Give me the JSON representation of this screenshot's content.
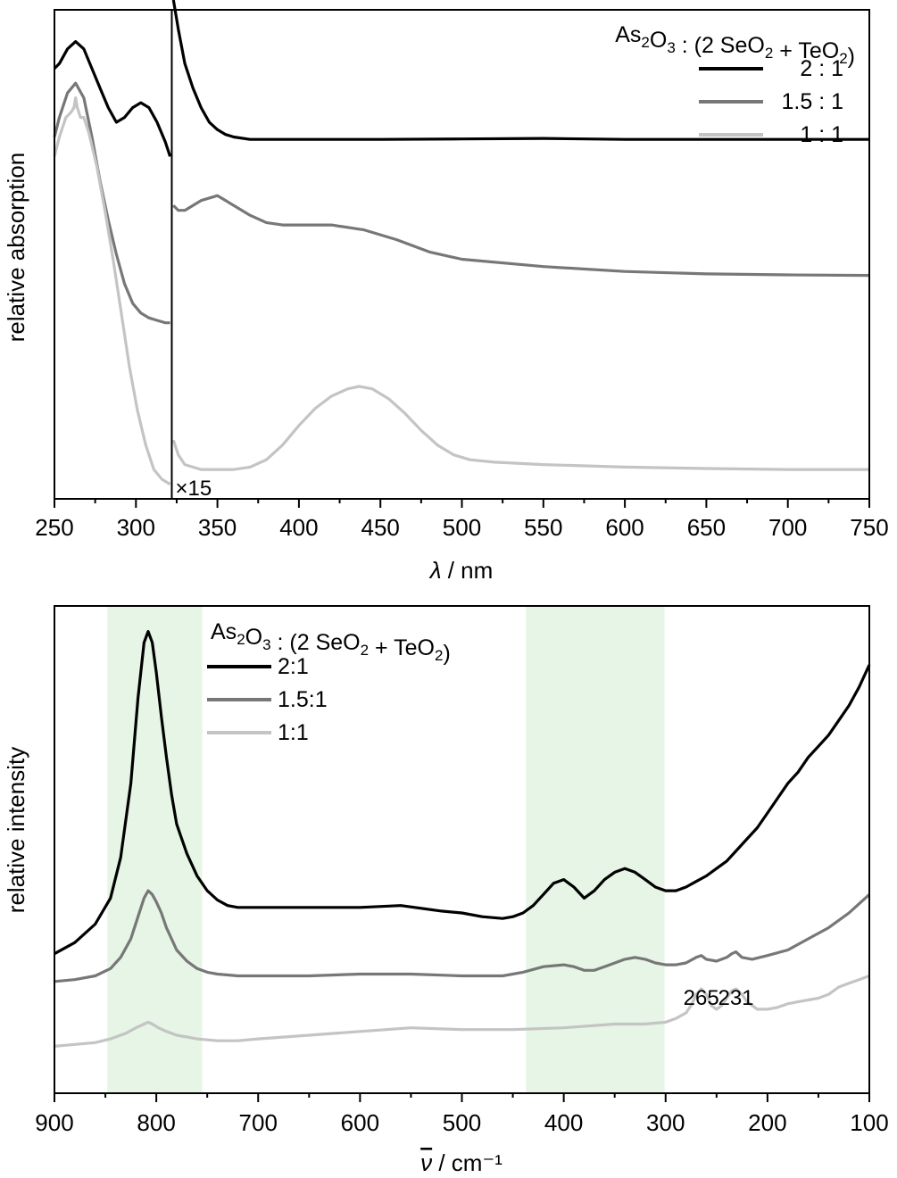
{
  "chart_data": [
    {
      "type": "line",
      "panel": "top",
      "xlabel_symbol": "λ",
      "xlabel_unit": " / nm",
      "ylabel": "relative absorption",
      "xlim": [
        250,
        750
      ],
      "xticks": [
        "250",
        "300",
        "350",
        "400",
        "450",
        "500",
        "550",
        "600",
        "650",
        "700",
        "750"
      ],
      "y_axis_tick_labels": false,
      "split_at": 322,
      "split_factor_label": "×15",
      "legend": {
        "title_parts": [
          [
            "As",
            ""
          ],
          [
            "2",
            "sub"
          ],
          [
            "O",
            ""
          ],
          [
            "3",
            "sub"
          ],
          [
            " : (2 SeO",
            ""
          ],
          [
            "2",
            "sub"
          ],
          [
            " + TeO",
            ""
          ],
          [
            "2",
            "sub"
          ],
          [
            ")",
            ""
          ]
        ],
        "position": "top-right"
      },
      "series": [
        {
          "name": "2 : 1",
          "color": "#000000",
          "x": [
            250,
            253,
            258,
            263,
            268,
            273,
            278,
            283,
            288,
            293,
            298,
            303,
            308,
            313,
            318,
            321,
            323,
            326,
            330,
            335,
            340,
            345,
            350,
            355,
            360,
            370,
            380,
            400,
            450,
            500,
            550,
            600,
            650,
            700,
            750
          ],
          "y": [
            0.88,
            0.89,
            0.92,
            0.935,
            0.92,
            0.88,
            0.84,
            0.8,
            0.77,
            0.78,
            0.8,
            0.81,
            0.8,
            0.77,
            0.73,
            0.7,
            1.02,
            0.96,
            0.89,
            0.84,
            0.8,
            0.77,
            0.755,
            0.745,
            0.74,
            0.735,
            0.735,
            0.735,
            0.735,
            0.736,
            0.737,
            0.735,
            0.735,
            0.735,
            0.735
          ]
        },
        {
          "name": "1.5 : 1",
          "color": "#777777",
          "x": [
            250,
            253,
            258,
            263,
            268,
            273,
            278,
            283,
            288,
            293,
            298,
            303,
            308,
            313,
            318,
            321,
            323,
            326,
            330,
            340,
            350,
            360,
            370,
            380,
            390,
            400,
            420,
            440,
            460,
            480,
            500,
            550,
            600,
            650,
            700,
            750
          ],
          "y": [
            0.74,
            0.78,
            0.83,
            0.85,
            0.82,
            0.74,
            0.65,
            0.57,
            0.5,
            0.44,
            0.4,
            0.38,
            0.37,
            0.365,
            0.36,
            0.36,
            0.6,
            0.59,
            0.59,
            0.61,
            0.62,
            0.6,
            0.58,
            0.565,
            0.56,
            0.56,
            0.56,
            0.55,
            0.53,
            0.505,
            0.49,
            0.475,
            0.465,
            0.46,
            0.458,
            0.457
          ]
        },
        {
          "name": "1 : 1",
          "color": "#c4c4c4",
          "x": [
            250,
            253,
            257,
            260,
            262,
            263,
            264,
            266,
            268,
            271,
            276,
            281,
            286,
            291,
            296,
            301,
            306,
            311,
            316,
            321,
            323,
            326,
            330,
            340,
            350,
            360,
            370,
            380,
            390,
            400,
            410,
            420,
            430,
            437,
            445,
            455,
            465,
            475,
            485,
            495,
            505,
            520,
            550,
            600,
            650,
            700,
            750
          ],
          "y": [
            0.7,
            0.74,
            0.78,
            0.79,
            0.8,
            0.82,
            0.8,
            0.78,
            0.78,
            0.75,
            0.68,
            0.59,
            0.49,
            0.38,
            0.27,
            0.18,
            0.11,
            0.06,
            0.04,
            0.03,
            0.12,
            0.09,
            0.07,
            0.06,
            0.06,
            0.06,
            0.065,
            0.08,
            0.11,
            0.15,
            0.185,
            0.21,
            0.225,
            0.23,
            0.225,
            0.205,
            0.175,
            0.14,
            0.11,
            0.09,
            0.08,
            0.075,
            0.07,
            0.065,
            0.062,
            0.06,
            0.06
          ]
        }
      ]
    },
    {
      "type": "line",
      "panel": "bottom",
      "xlabel_symbol": "ν",
      "xlabel_unit": " / cm⁻¹",
      "ylabel": "relative intensity",
      "xlim": [
        900,
        100
      ],
      "xticks": [
        "900",
        "800",
        "700",
        "600",
        "500",
        "400",
        "300",
        "200",
        "100"
      ],
      "y_axis_tick_labels": false,
      "highlight_bands": [
        [
          848,
          755
        ],
        [
          437,
          301
        ]
      ],
      "highlight_color": "#e6f5e6",
      "legend": {
        "title_parts": [
          [
            "As",
            ""
          ],
          [
            "2",
            "sub"
          ],
          [
            "O",
            ""
          ],
          [
            "3",
            "sub"
          ],
          [
            " : (2 SeO",
            ""
          ],
          [
            "2",
            "sub"
          ],
          [
            " + TeO",
            ""
          ],
          [
            "2",
            "sub"
          ],
          [
            ")",
            ""
          ]
        ],
        "position": "top-left"
      },
      "annotations": [
        {
          "text": "265",
          "x": 265
        },
        {
          "text": "231",
          "x": 231
        }
      ],
      "series": [
        {
          "name": "2:1",
          "color": "#000000",
          "x": [
            900,
            880,
            860,
            845,
            835,
            825,
            818,
            812,
            808,
            804,
            800,
            795,
            790,
            785,
            780,
            770,
            760,
            750,
            740,
            730,
            720,
            700,
            650,
            600,
            560,
            520,
            500,
            480,
            460,
            450,
            440,
            430,
            420,
            410,
            400,
            390,
            380,
            370,
            360,
            350,
            340,
            330,
            320,
            310,
            300,
            290,
            280,
            270,
            260,
            250,
            240,
            230,
            220,
            210,
            200,
            190,
            180,
            170,
            160,
            150,
            140,
            130,
            120,
            110,
            100
          ],
          "y": [
            0.09,
            0.12,
            0.17,
            0.24,
            0.35,
            0.55,
            0.78,
            0.93,
            0.96,
            0.93,
            0.85,
            0.73,
            0.62,
            0.52,
            0.44,
            0.36,
            0.3,
            0.26,
            0.235,
            0.22,
            0.215,
            0.215,
            0.215,
            0.215,
            0.22,
            0.205,
            0.2,
            0.19,
            0.185,
            0.19,
            0.2,
            0.22,
            0.25,
            0.28,
            0.29,
            0.27,
            0.24,
            0.26,
            0.29,
            0.31,
            0.32,
            0.31,
            0.29,
            0.27,
            0.26,
            0.26,
            0.27,
            0.285,
            0.3,
            0.32,
            0.34,
            0.37,
            0.4,
            0.43,
            0.47,
            0.51,
            0.55,
            0.58,
            0.62,
            0.65,
            0.68,
            0.72,
            0.76,
            0.81,
            0.87
          ]
        },
        {
          "name": "1.5:1",
          "color": "#777777",
          "x": [
            900,
            880,
            860,
            845,
            835,
            825,
            818,
            812,
            808,
            804,
            800,
            795,
            790,
            785,
            780,
            770,
            760,
            750,
            740,
            720,
            700,
            650,
            600,
            550,
            500,
            460,
            440,
            420,
            400,
            390,
            380,
            370,
            360,
            340,
            330,
            320,
            310,
            300,
            290,
            280,
            270,
            265,
            260,
            250,
            240,
            235,
            231,
            225,
            215,
            200,
            180,
            160,
            140,
            120,
            100
          ],
          "y": [
            0.015,
            0.02,
            0.03,
            0.05,
            0.08,
            0.13,
            0.19,
            0.24,
            0.26,
            0.25,
            0.23,
            0.2,
            0.16,
            0.13,
            0.1,
            0.07,
            0.05,
            0.04,
            0.035,
            0.03,
            0.03,
            0.03,
            0.035,
            0.035,
            0.03,
            0.03,
            0.04,
            0.055,
            0.06,
            0.055,
            0.045,
            0.045,
            0.055,
            0.075,
            0.08,
            0.075,
            0.065,
            0.06,
            0.06,
            0.065,
            0.08,
            0.085,
            0.075,
            0.07,
            0.08,
            0.09,
            0.095,
            0.08,
            0.075,
            0.085,
            0.1,
            0.13,
            0.16,
            0.2,
            0.25
          ]
        },
        {
          "name": "1:1",
          "color": "#c4c4c4",
          "x": [
            900,
            880,
            860,
            845,
            830,
            820,
            812,
            808,
            804,
            798,
            790,
            780,
            770,
            760,
            740,
            720,
            700,
            650,
            600,
            550,
            500,
            450,
            400,
            350,
            320,
            300,
            290,
            280,
            275,
            270,
            265,
            260,
            255,
            250,
            245,
            240,
            235,
            231,
            225,
            220,
            210,
            200,
            190,
            180,
            170,
            160,
            150,
            140,
            130,
            120,
            110,
            100
          ],
          "y": [
            -0.16,
            -0.155,
            -0.15,
            -0.14,
            -0.125,
            -0.11,
            -0.1,
            -0.095,
            -0.1,
            -0.11,
            -0.12,
            -0.13,
            -0.135,
            -0.14,
            -0.145,
            -0.145,
            -0.14,
            -0.13,
            -0.12,
            -0.11,
            -0.115,
            -0.115,
            -0.11,
            -0.1,
            -0.1,
            -0.095,
            -0.085,
            -0.07,
            -0.05,
            -0.02,
            -0.005,
            -0.02,
            -0.05,
            -0.06,
            -0.05,
            -0.03,
            -0.01,
            -0.005,
            -0.02,
            -0.04,
            -0.06,
            -0.06,
            -0.055,
            -0.045,
            -0.04,
            -0.035,
            -0.03,
            -0.02,
            0.0,
            0.01,
            0.02,
            0.03
          ]
        }
      ]
    }
  ]
}
